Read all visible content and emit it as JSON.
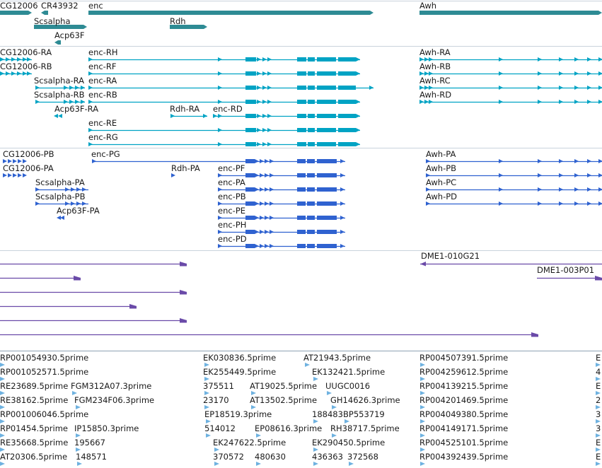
{
  "tracks": [
    {
      "name": "gene",
      "color": "#2e8b94",
      "features": [
        {
          "label": "CG12006"
        },
        {
          "label": "CR43932"
        },
        {
          "label": "enc"
        },
        {
          "label": "Awh"
        },
        {
          "label": "Scsalpha"
        },
        {
          "label": "Rdh"
        },
        {
          "label": "Acp63F"
        }
      ]
    },
    {
      "name": "transcript",
      "color": "#00a3c4",
      "features": [
        {
          "label": "CG12006-RA"
        },
        {
          "label": "enc-RH"
        },
        {
          "label": "Awh-RA"
        },
        {
          "label": "CG12006-RB"
        },
        {
          "label": "enc-RF"
        },
        {
          "label": "Awh-RB"
        },
        {
          "label": "Scsalpha-RA"
        },
        {
          "label": "enc-RA"
        },
        {
          "label": "Awh-RC"
        },
        {
          "label": "Scsalpha-RB"
        },
        {
          "label": "enc-RB"
        },
        {
          "label": "Awh-RD"
        },
        {
          "label": "Acp63F-RA"
        },
        {
          "label": "Rdh-RA"
        },
        {
          "label": "enc-RD"
        },
        {
          "label": "enc-RE"
        },
        {
          "label": "enc-RG"
        }
      ]
    },
    {
      "name": "protein",
      "color": "#2f62d0",
      "features": [
        {
          "label": "CG12006-PB"
        },
        {
          "label": "enc-PG"
        },
        {
          "label": "Awh-PA"
        },
        {
          "label": "CG12006-PA"
        },
        {
          "label": "Rdh-PA"
        },
        {
          "label": "enc-PF"
        },
        {
          "label": "Awh-PB"
        },
        {
          "label": "Scsalpha-PA"
        },
        {
          "label": "enc-PA"
        },
        {
          "label": "Awh-PC"
        },
        {
          "label": "Scsalpha-PB"
        },
        {
          "label": "enc-PB"
        },
        {
          "label": "Awh-PD"
        },
        {
          "label": "Acp63F-PA"
        },
        {
          "label": "enc-PE"
        },
        {
          "label": "enc-PH"
        },
        {
          "label": "enc-PD"
        }
      ]
    },
    {
      "name": "clone",
      "color": "#6a4aa8",
      "features": [
        {
          "label": "DME1-010G21"
        },
        {
          "label": "DME1-003P01"
        }
      ]
    },
    {
      "name": "est",
      "color": "#6fb2e0",
      "features": [
        {
          "label": "RP001054930.5prime"
        },
        {
          "label": "EK030836.5prime"
        },
        {
          "label": "AT21943.5prime"
        },
        {
          "label": "RP004507391.5prime"
        },
        {
          "label": "E"
        },
        {
          "label": "RP001052571.5prime"
        },
        {
          "label": "EK255449.5prime"
        },
        {
          "label": "EK132421.5prime"
        },
        {
          "label": "RP004259612.5prime"
        },
        {
          "label": "4"
        },
        {
          "label": "RE23689.5prime"
        },
        {
          "label": "FGM312A07.3prime"
        },
        {
          "label": "375511"
        },
        {
          "label": "AT19025.5prime"
        },
        {
          "label": "UUGC0016"
        },
        {
          "label": "RP004139215.5prime"
        },
        {
          "label": "E"
        },
        {
          "label": "RE38162.5prime"
        },
        {
          "label": "FGM234F06.3prime"
        },
        {
          "label": "23170"
        },
        {
          "label": "AT13502.5prime"
        },
        {
          "label": "GH14626.3prime"
        },
        {
          "label": "RP004201469.5prime"
        },
        {
          "label": "2"
        },
        {
          "label": "RP001006046.5prime"
        },
        {
          "label": "EP18519.3prime"
        },
        {
          "label": "188483"
        },
        {
          "label": "BP553719"
        },
        {
          "label": "RP004049380.5prime"
        },
        {
          "label": "3"
        },
        {
          "label": "RP01454.5prime"
        },
        {
          "label": "IP15850.3prime"
        },
        {
          "label": "514012"
        },
        {
          "label": "EP08616.3prime"
        },
        {
          "label": "RH38717.5prime"
        },
        {
          "label": "RP004149171.5prime"
        },
        {
          "label": "3"
        },
        {
          "label": "RE35668.5prime"
        },
        {
          "label": "195667"
        },
        {
          "label": "EK247622.5prime"
        },
        {
          "label": "EK290450.5prime"
        },
        {
          "label": "RP004525101.5prime"
        },
        {
          "label": "E"
        },
        {
          "label": "AT20306.5prime"
        },
        {
          "label": "148571"
        },
        {
          "label": "370572"
        },
        {
          "label": "480630"
        },
        {
          "label": "436363"
        },
        {
          "label": "372568"
        },
        {
          "label": "RP004392439.5prime"
        },
        {
          "label": "E"
        }
      ]
    }
  ]
}
